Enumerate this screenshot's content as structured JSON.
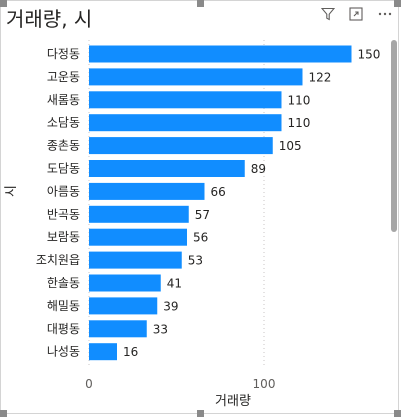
{
  "title": "거래량, 시",
  "icons": [
    "filter-icon",
    "focus-mode-icon",
    "more-options-icon"
  ],
  "colors": {
    "bar": "#118dff",
    "text": "#252423",
    "label_inside": "#ffffff"
  },
  "chart_data": {
    "type": "bar",
    "orientation": "horizontal",
    "title": "거래량, 시",
    "xlabel": "거래량",
    "ylabel": "시",
    "categories": [
      "다정동",
      "고운동",
      "새롬동",
      "소담동",
      "종촌동",
      "도담동",
      "아름동",
      "반곡동",
      "보람동",
      "조치원읍",
      "한솔동",
      "해밀동",
      "대평동",
      "나성동"
    ],
    "values": [
      150,
      122,
      110,
      110,
      105,
      89,
      66,
      57,
      56,
      53,
      41,
      39,
      33,
      16
    ],
    "xlim": [
      0,
      150
    ],
    "xticks": [
      0,
      100
    ],
    "data_labels": true,
    "grid": "vertical dotted"
  }
}
